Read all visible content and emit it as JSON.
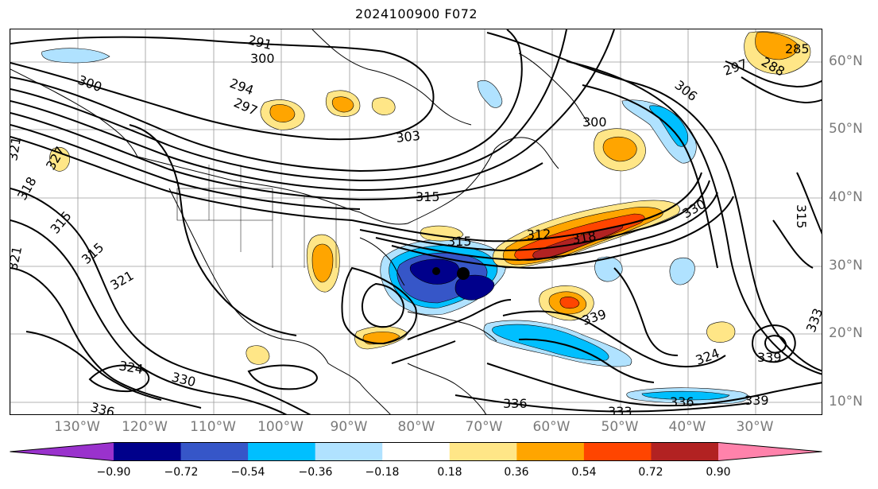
{
  "title": "2024100900 F072",
  "longitude_labels": [
    "130°W",
    "120°W",
    "110°W",
    "100°W",
    "90°W",
    "80°W",
    "70°W",
    "60°W",
    "50°W",
    "40°W",
    "30°W"
  ],
  "latitude_labels": [
    "60°N",
    "50°N",
    "40°N",
    "30°N",
    "20°N",
    "10°N"
  ],
  "contour_labels": [
    "291",
    "294",
    "297",
    "300",
    "300",
    "300",
    "303",
    "306",
    "315",
    "315",
    "315",
    "318",
    "321",
    "321",
    "321",
    "324",
    "324",
    "327",
    "330",
    "330",
    "333",
    "333",
    "336",
    "336",
    "339",
    "339",
    "339",
    "312",
    "318",
    "285",
    "288",
    "297",
    "315",
    "315",
    "336"
  ],
  "colorbar": {
    "ticks": [
      "−0.90",
      "−0.72",
      "−0.54",
      "−0.36",
      "−0.18",
      "0.18",
      "0.36",
      "0.54",
      "0.72",
      "0.90"
    ],
    "colors": [
      "#9a32cd",
      "#00008b",
      "#3656c8",
      "#00bfff",
      "#b0e2ff",
      "#ffffff",
      "#ffe687",
      "#ffa500",
      "#ff4500",
      "#b22222",
      "#ff82ab"
    ]
  },
  "marker": "hurricane-center-dot"
}
